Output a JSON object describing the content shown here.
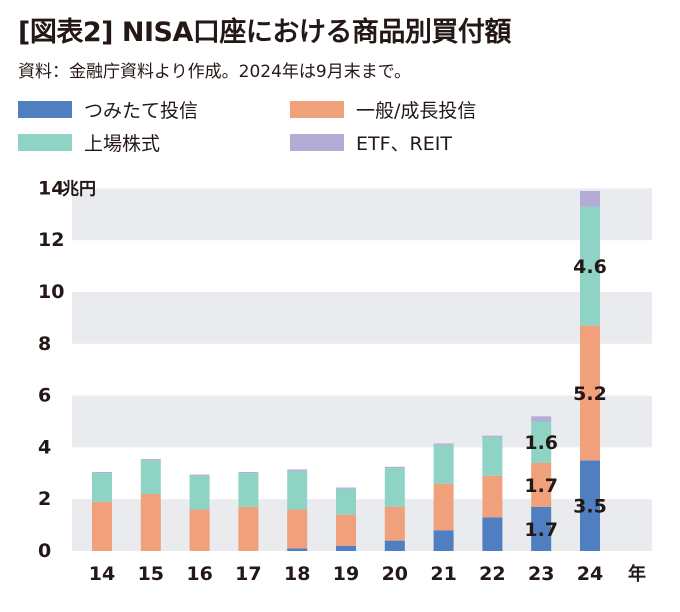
{
  "header": {
    "title": "[図表2] NISA口座における商品別買付額",
    "source": "資料：金融庁資料より作成。2024年は9月末まで。"
  },
  "legend": [
    {
      "label": "つみたて投信",
      "color": "#4f7fc0"
    },
    {
      "label": "一般/成長投信",
      "color": "#f0a07a"
    },
    {
      "label": "上場株式",
      "color": "#8fd3c4"
    },
    {
      "label": "ETF、REIT",
      "color": "#b3acd6"
    }
  ],
  "chart_data": {
    "type": "bar",
    "stacked": true,
    "y_unit": "兆円",
    "x_unit": "年",
    "ylim": [
      0,
      14
    ],
    "yticks": [
      "0",
      "2",
      "4",
      "6",
      "8",
      "10",
      "12",
      "14"
    ],
    "categories": [
      "14",
      "15",
      "16",
      "17",
      "18",
      "19",
      "20",
      "21",
      "22",
      "23",
      "24"
    ],
    "series": [
      {
        "name": "つみたて投信",
        "color": "#4f7fc0",
        "values": [
          0,
          0,
          0,
          0,
          0.1,
          0.2,
          0.4,
          0.8,
          1.3,
          1.7,
          3.5
        ]
      },
      {
        "name": "一般/成長投信",
        "color": "#f0a07a",
        "values": [
          1.9,
          2.2,
          1.6,
          1.7,
          1.5,
          1.2,
          1.3,
          1.8,
          1.6,
          1.7,
          5.2
        ]
      },
      {
        "name": "上場株式",
        "color": "#8fd3c4",
        "values": [
          1.1,
          1.3,
          1.3,
          1.3,
          1.5,
          1.0,
          1.5,
          1.5,
          1.5,
          1.6,
          4.6
        ]
      },
      {
        "name": "ETF、REIT",
        "color": "#b3acd6",
        "values": [
          0.05,
          0.05,
          0.05,
          0.05,
          0.05,
          0.05,
          0.05,
          0.05,
          0.05,
          0.2,
          0.6
        ]
      }
    ],
    "data_labels": [
      {
        "category": "23",
        "series": "つみたて投信",
        "text": "1.7"
      },
      {
        "category": "23",
        "series": "一般/成長投信",
        "text": "1.7"
      },
      {
        "category": "23",
        "series": "上場株式",
        "text": "1.6"
      },
      {
        "category": "24",
        "series": "つみたて投信",
        "text": "3.5"
      },
      {
        "category": "24",
        "series": "一般/成長投信",
        "text": "5.2"
      },
      {
        "category": "24",
        "series": "上場株式",
        "text": "4.6"
      }
    ],
    "band_color": "#e9ebee"
  }
}
